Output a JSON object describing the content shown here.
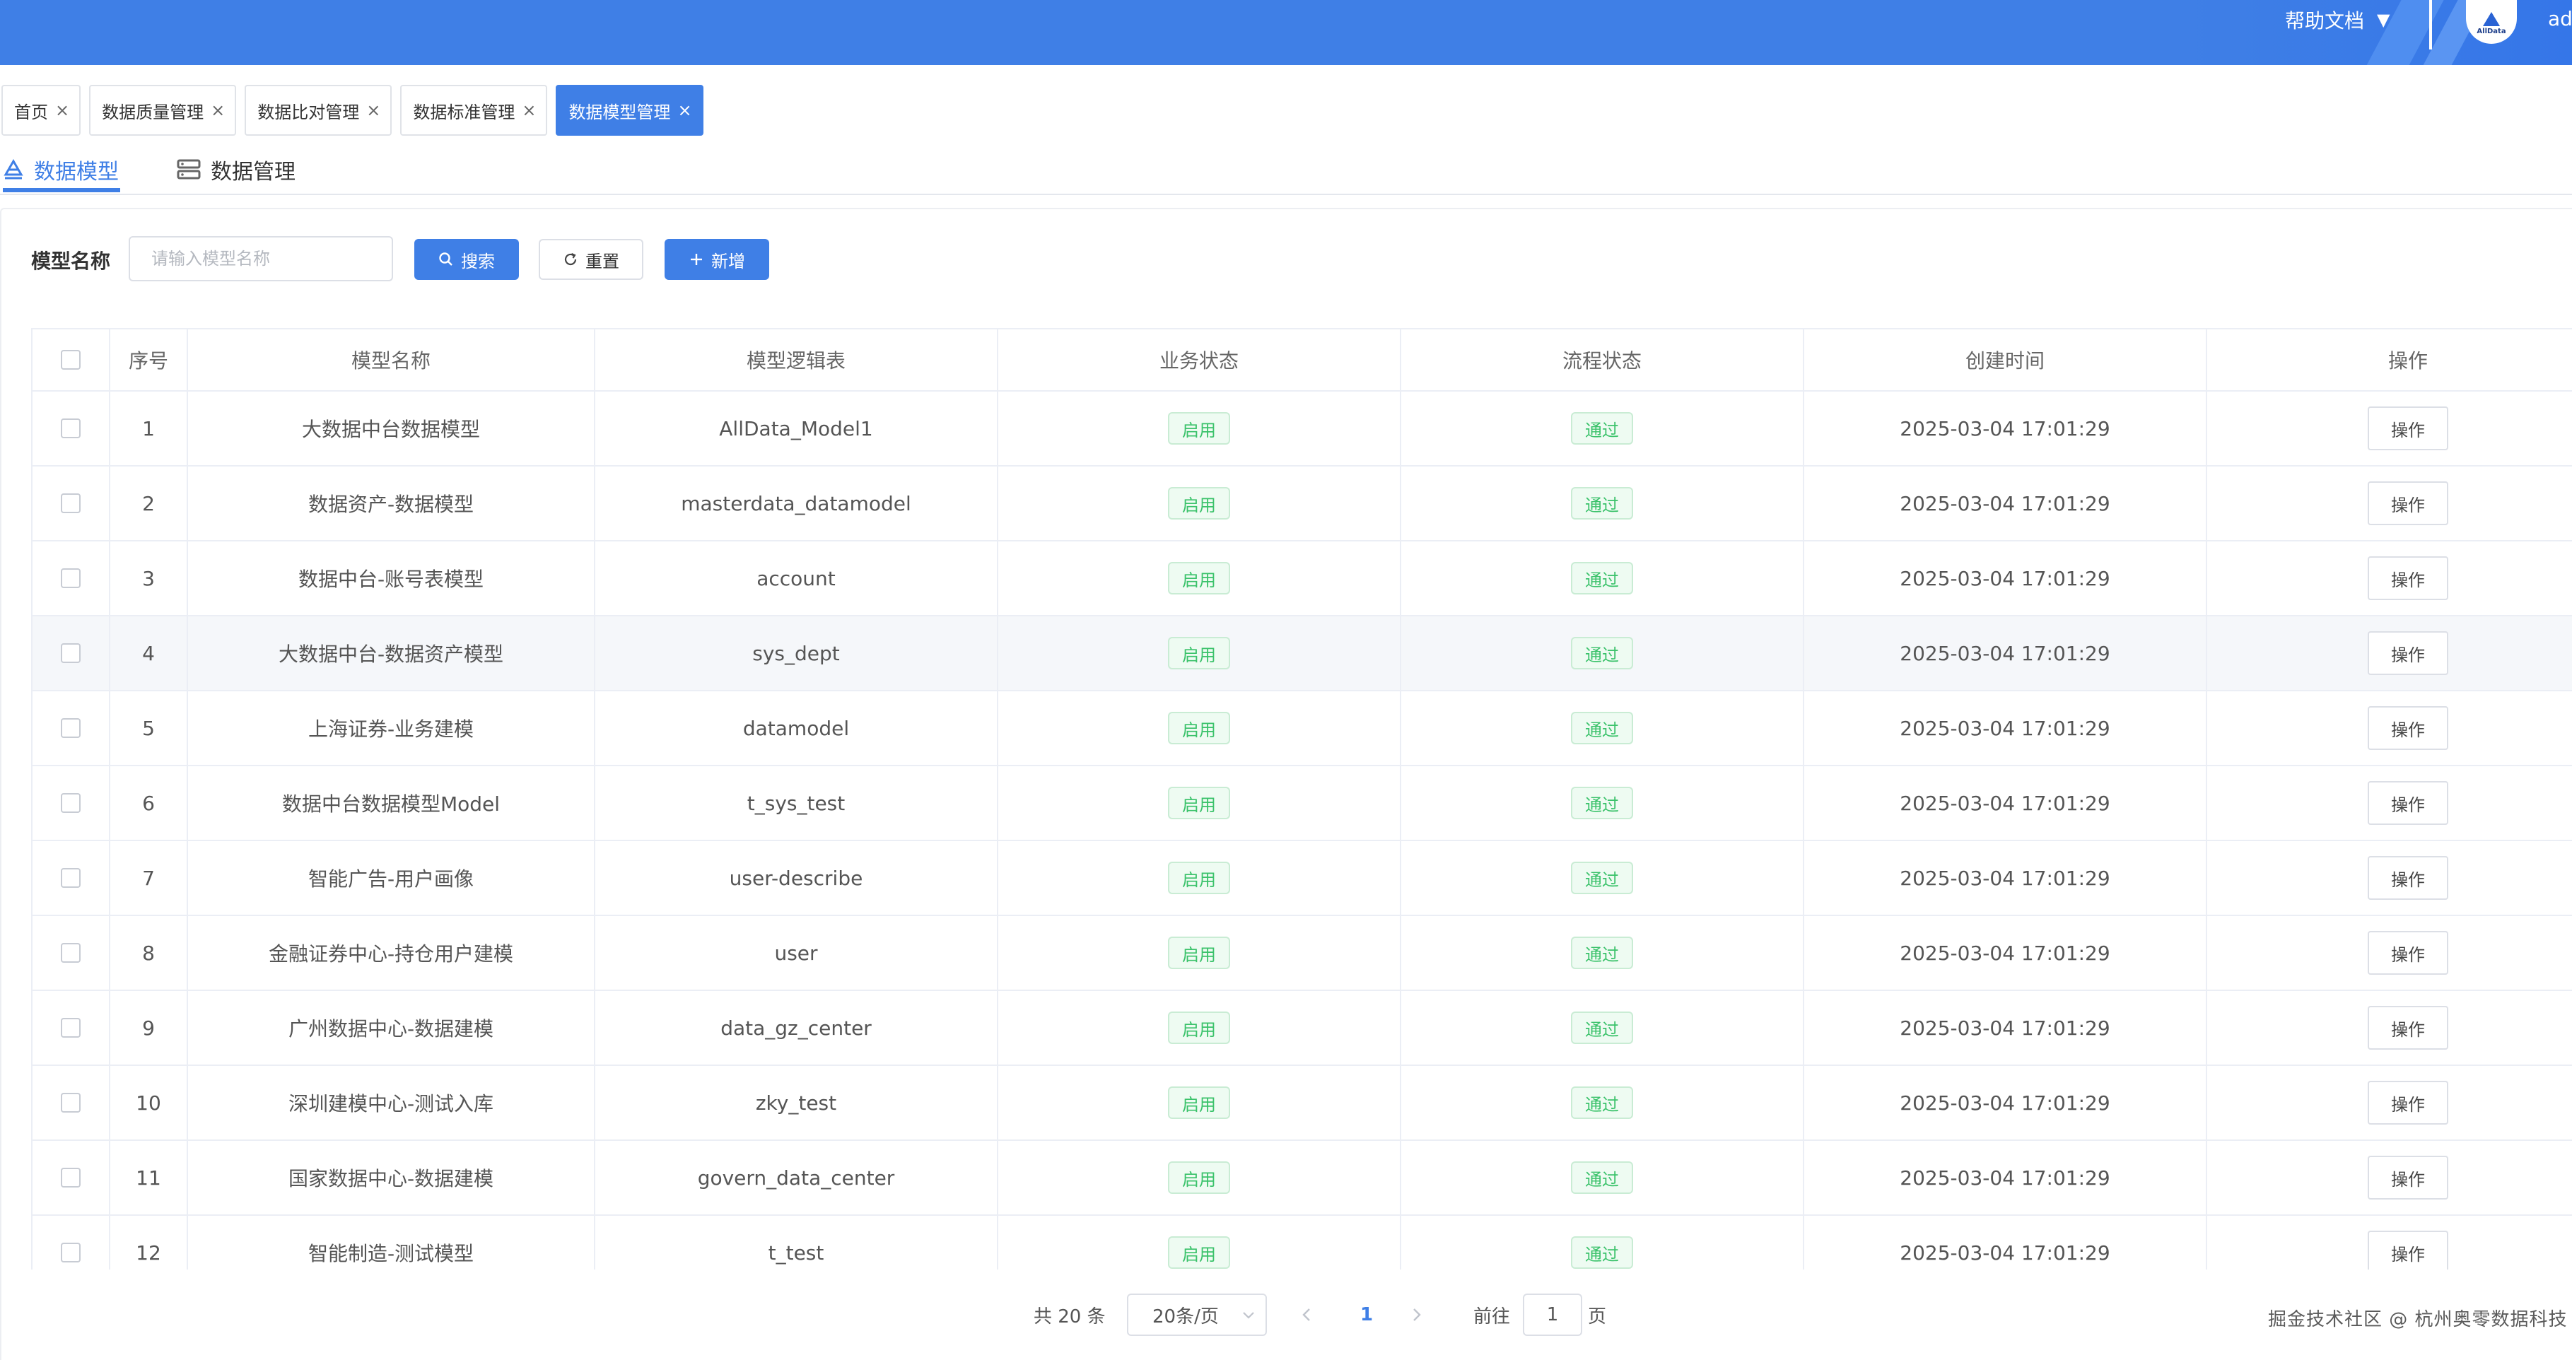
{
  "header": {
    "help_docs": "帮助文档",
    "avatar_text": "AllData",
    "username": "ad"
  },
  "tags": [
    {
      "label": "首页",
      "active": false
    },
    {
      "label": "数据质量管理",
      "active": false
    },
    {
      "label": "数据比对管理",
      "active": false
    },
    {
      "label": "数据标准管理",
      "active": false
    },
    {
      "label": "数据模型管理",
      "active": true
    }
  ],
  "subtabs": [
    {
      "label": "数据模型",
      "active": true
    },
    {
      "label": "数据管理",
      "active": false
    }
  ],
  "search": {
    "label": "模型名称",
    "placeholder": "请输入模型名称",
    "search_button": "搜索",
    "reset_button": "重置",
    "add_button": "新增"
  },
  "table": {
    "columns": [
      "序号",
      "模型名称",
      "模型逻辑表",
      "业务状态",
      "流程状态",
      "创建时间",
      "操作"
    ],
    "rows": [
      {
        "index": "1",
        "name": "大数据中台数据模型",
        "table": "AllData_Model1",
        "biz_status": "启用",
        "flow_status": "通过",
        "created": "2025-03-04 17:01:29",
        "op": "操作"
      },
      {
        "index": "2",
        "name": "数据资产-数据模型",
        "table": "masterdata_datamodel",
        "biz_status": "启用",
        "flow_status": "通过",
        "created": "2025-03-04 17:01:29",
        "op": "操作"
      },
      {
        "index": "3",
        "name": "数据中台-账号表模型",
        "table": "account",
        "biz_status": "启用",
        "flow_status": "通过",
        "created": "2025-03-04 17:01:29",
        "op": "操作"
      },
      {
        "index": "4",
        "name": "大数据中台-数据资产模型",
        "table": "sys_dept",
        "biz_status": "启用",
        "flow_status": "通过",
        "created": "2025-03-04 17:01:29",
        "op": "操作"
      },
      {
        "index": "5",
        "name": "上海证券-业务建模",
        "table": "datamodel",
        "biz_status": "启用",
        "flow_status": "通过",
        "created": "2025-03-04 17:01:29",
        "op": "操作"
      },
      {
        "index": "6",
        "name": "数据中台数据模型Model",
        "table": "t_sys_test",
        "biz_status": "启用",
        "flow_status": "通过",
        "created": "2025-03-04 17:01:29",
        "op": "操作"
      },
      {
        "index": "7",
        "name": "智能广告-用户画像",
        "table": "user-describe",
        "biz_status": "启用",
        "flow_status": "通过",
        "created": "2025-03-04 17:01:29",
        "op": "操作"
      },
      {
        "index": "8",
        "name": "金融证券中心-持仓用户建模",
        "table": "user",
        "biz_status": "启用",
        "flow_status": "通过",
        "created": "2025-03-04 17:01:29",
        "op": "操作"
      },
      {
        "index": "9",
        "name": "广州数据中心-数据建模",
        "table": "data_gz_center",
        "biz_status": "启用",
        "flow_status": "通过",
        "created": "2025-03-04 17:01:29",
        "op": "操作"
      },
      {
        "index": "10",
        "name": "深圳建模中心-测试入库",
        "table": "zky_test",
        "biz_status": "启用",
        "flow_status": "通过",
        "created": "2025-03-04 17:01:29",
        "op": "操作"
      },
      {
        "index": "11",
        "name": "国家数据中心-数据建模",
        "table": "govern_data_center",
        "biz_status": "启用",
        "flow_status": "通过",
        "created": "2025-03-04 17:01:29",
        "op": "操作"
      },
      {
        "index": "12",
        "name": "智能制造-测试模型",
        "table": "t_test",
        "biz_status": "启用",
        "flow_status": "通过",
        "created": "2025-03-04 17:01:29",
        "op": "操作"
      }
    ]
  },
  "pagination": {
    "total": "共 20 条",
    "page_size": "20条/页",
    "current_page": "1",
    "goto_label": "前往",
    "goto_value": "1",
    "page_suffix": "页"
  },
  "watermark": "掘金技术社区 @ 杭州奥零数据科技",
  "colors": {
    "primary": "#3f7fe6",
    "success_text": "#3ac26a",
    "success_bg": "#eefbf2"
  }
}
